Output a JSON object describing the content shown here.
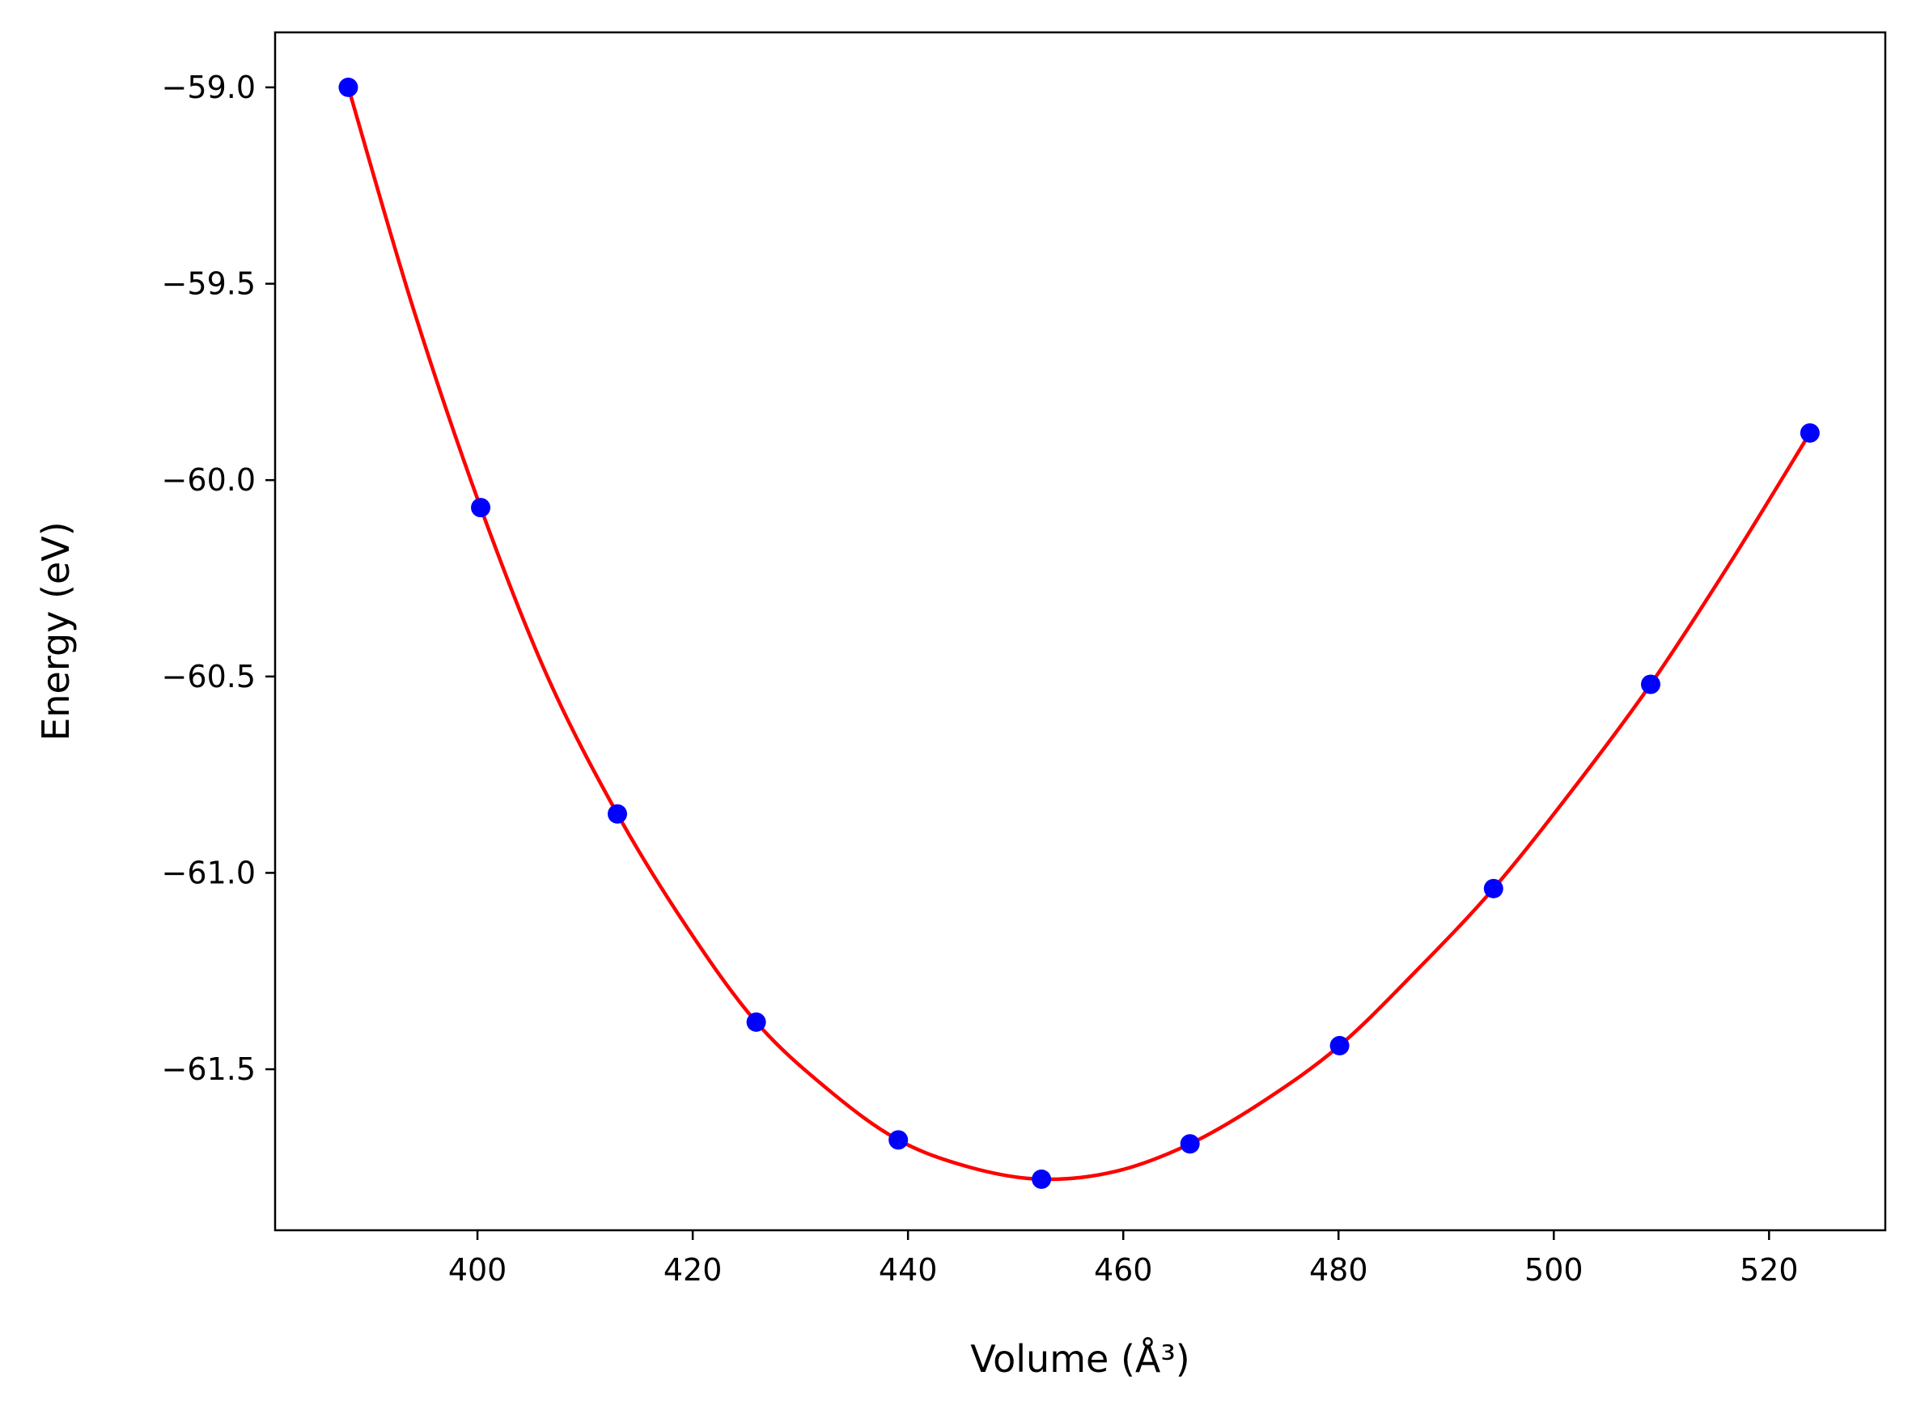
{
  "chart_data": {
    "type": "line",
    "title": "",
    "xlabel": "Volume (Å³)",
    "ylabel": "Energy (eV)",
    "xlim": [
      381.2,
      530.8
    ],
    "ylim": [
      -61.91,
      -58.86
    ],
    "x_ticks": [
      400,
      420,
      440,
      460,
      480,
      500,
      520
    ],
    "x_tick_labels": [
      "400",
      "420",
      "440",
      "460",
      "480",
      "500",
      "520"
    ],
    "y_ticks": [
      -59.0,
      -59.5,
      -60.0,
      -60.5,
      -61.0,
      -61.5
    ],
    "y_tick_labels": [
      "−59.0",
      "−59.5",
      "−60.0",
      "−60.5",
      "−61.0",
      "−61.5"
    ],
    "grid": false,
    "legend": "none",
    "series": [
      {
        "kind": "scatter",
        "color": "#0000ff",
        "x": [
          388.0,
          400.3,
          413.0,
          425.9,
          439.1,
          452.4,
          466.2,
          480.1,
          494.4,
          509.0,
          523.8
        ],
        "y": [
          -59.0,
          -60.07,
          -60.85,
          -61.38,
          -61.68,
          -61.78,
          -61.69,
          -61.44,
          -61.04,
          -60.52,
          -59.88
        ]
      },
      {
        "kind": "line",
        "color": "#ff0000",
        "x": [
          388.0,
          394.0,
          400.3,
          406.5,
          413.0,
          419.5,
          425.9,
          432.5,
          439.1,
          445.8,
          452.4,
          459.3,
          466.2,
          473.1,
          480.1,
          487.2,
          494.4,
          501.7,
          509.0,
          516.4,
          523.8
        ],
        "y": [
          -59.0,
          -59.56,
          -60.07,
          -60.5,
          -60.85,
          -61.14,
          -61.38,
          -61.55,
          -61.68,
          -61.75,
          -61.78,
          -61.76,
          -61.69,
          -61.58,
          -61.44,
          -61.25,
          -61.04,
          -60.79,
          -60.52,
          -60.21,
          -59.88
        ]
      }
    ]
  }
}
